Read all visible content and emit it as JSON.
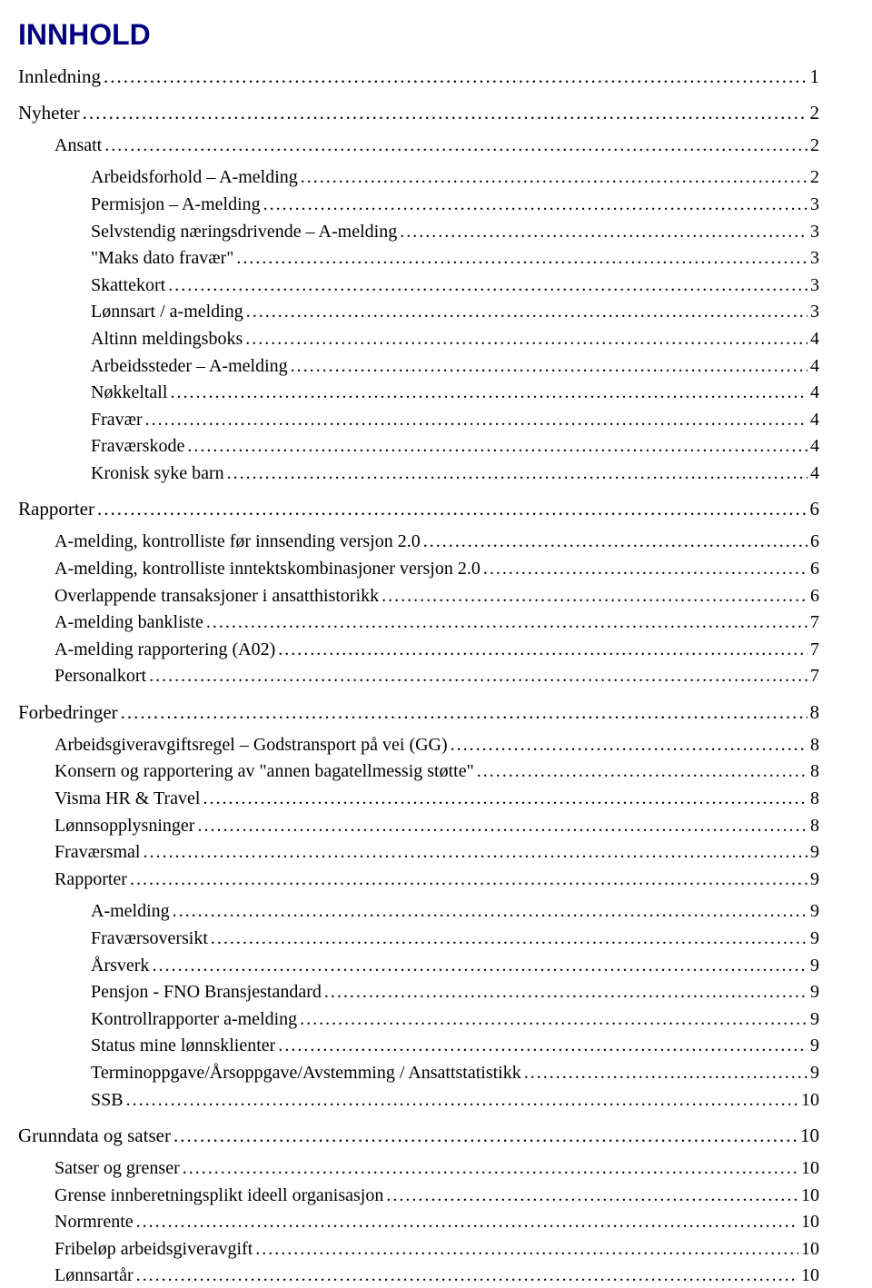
{
  "title": "INNHOLD",
  "colors": {
    "title": "#000080",
    "text": "#000000",
    "background": "#ffffff"
  },
  "typography": {
    "title_font": "Arial",
    "title_weight": "bold",
    "title_size_pt": 24,
    "body_font": "Times New Roman",
    "body_size_pt": 15
  },
  "toc": [
    {
      "level": 1,
      "label": "Innledning",
      "page": "1"
    },
    {
      "level": 1,
      "label": "Nyheter",
      "page": "2"
    },
    {
      "level": 2,
      "label": "Ansatt",
      "page": "2"
    },
    {
      "level": 3,
      "label": "Arbeidsforhold – A-melding",
      "page": "2"
    },
    {
      "level": 3,
      "label": "Permisjon – A-melding",
      "page": "3"
    },
    {
      "level": 3,
      "label": "Selvstendig næringsdrivende – A-melding",
      "page": "3"
    },
    {
      "level": 3,
      "label": "\"Maks dato fravær\"",
      "page": "3"
    },
    {
      "level": 3,
      "label": "Skattekort",
      "page": "3"
    },
    {
      "level": 3,
      "label": "Lønnsart / a-melding",
      "page": "3"
    },
    {
      "level": 3,
      "label": "Altinn meldingsboks",
      "page": "4"
    },
    {
      "level": 3,
      "label": "Arbeidssteder – A-melding",
      "page": "4"
    },
    {
      "level": 3,
      "label": "Nøkkeltall",
      "page": "4"
    },
    {
      "level": 3,
      "label": "Fravær",
      "page": "4"
    },
    {
      "level": 3,
      "label": "Fraværskode",
      "page": "4"
    },
    {
      "level": 3,
      "label": "Kronisk syke barn",
      "page": "4"
    },
    {
      "level": 1,
      "label": "Rapporter",
      "page": "6"
    },
    {
      "level": 2,
      "label": "A-melding, kontrolliste før innsending versjon 2.0",
      "page": "6"
    },
    {
      "level": 2,
      "label": "A-melding, kontrolliste inntektskombinasjoner versjon 2.0",
      "page": "6"
    },
    {
      "level": 2,
      "label": "Overlappende transaksjoner i ansatthistorikk",
      "page": "6"
    },
    {
      "level": 2,
      "label": "A-melding bankliste",
      "page": "7"
    },
    {
      "level": 2,
      "label": "A-melding rapportering (A02)",
      "page": "7"
    },
    {
      "level": 2,
      "label": "Personalkort",
      "page": "7"
    },
    {
      "level": 1,
      "label": "Forbedringer",
      "page": "8"
    },
    {
      "level": 2,
      "label": "Arbeidsgiveravgiftsregel – Godstransport på vei (GG)",
      "page": "8"
    },
    {
      "level": 2,
      "label": "Konsern og rapportering av \"annen bagatellmessig støtte\"",
      "page": "8"
    },
    {
      "level": 2,
      "label": "Visma HR & Travel",
      "page": "8"
    },
    {
      "level": 2,
      "label": "Lønnsopplysninger",
      "page": "8"
    },
    {
      "level": 2,
      "label": "Fraværsmal",
      "page": "9"
    },
    {
      "level": 2,
      "label": "Rapporter",
      "page": "9"
    },
    {
      "level": 3,
      "label": "A-melding",
      "page": "9"
    },
    {
      "level": 3,
      "label": "Fraværsoversikt",
      "page": "9"
    },
    {
      "level": 3,
      "label": "Årsverk",
      "page": "9"
    },
    {
      "level": 3,
      "label": "Pensjon - FNO Bransjestandard",
      "page": "9"
    },
    {
      "level": 3,
      "label": "Kontrollrapporter a-melding",
      "page": "9"
    },
    {
      "level": 3,
      "label": "Status mine lønnsklienter",
      "page": "9"
    },
    {
      "level": 3,
      "label": "Terminoppgave/Årsoppgave/Avstemming / Ansattstatistikk",
      "page": "9"
    },
    {
      "level": 3,
      "label": "SSB",
      "page": "10"
    },
    {
      "level": 1,
      "label": "Grunndata og satser",
      "page": "10"
    },
    {
      "level": 2,
      "label": "Satser og grenser",
      "page": "10"
    },
    {
      "level": 2,
      "label": "Grense innberetningsplikt ideell organisasjon",
      "page": "10"
    },
    {
      "level": 2,
      "label": "Normrente",
      "page": "10"
    },
    {
      "level": 2,
      "label": "Fribeløp arbeidsgiveravgift",
      "page": "10"
    },
    {
      "level": 2,
      "label": "Lønnsartår",
      "page": "10"
    }
  ]
}
